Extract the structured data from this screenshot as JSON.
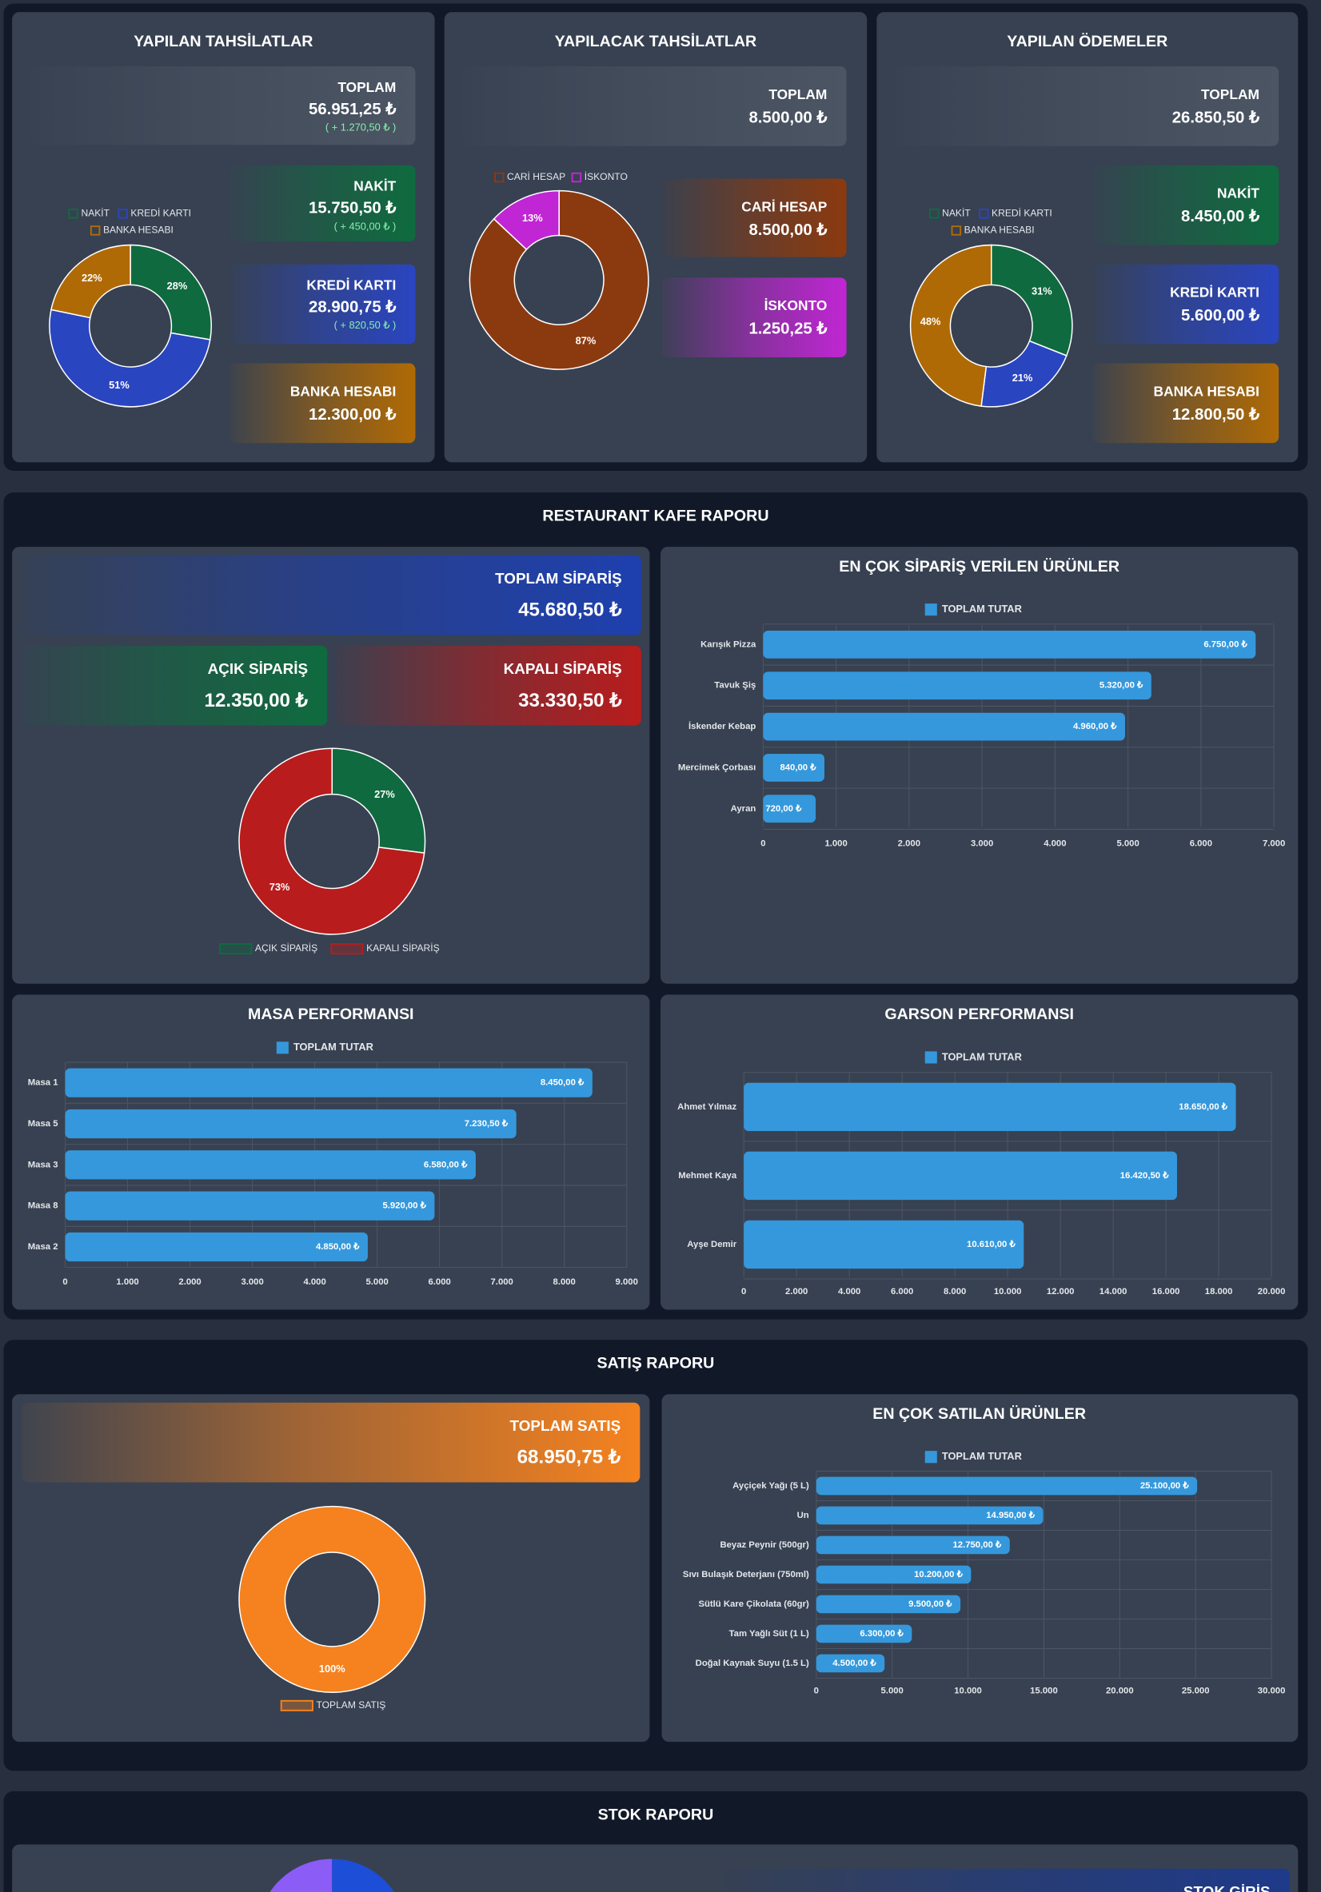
{
  "finance_panels": [
    {
      "title": "YAPILAN TAHSİLATLAR",
      "cards": [
        {
          "label": "TOPLAM",
          "value": "56.951,25 ₺",
          "change": "( + 1.270,50 ₺ )",
          "color": "#4b5563"
        },
        {
          "label": "NAKİT",
          "value": "15.750,50 ₺",
          "change": "( + 450,00 ₺ )",
          "color": "#0f6b3f"
        },
        {
          "label": "KREDİ KARTI",
          "value": "28.900,75 ₺",
          "change": "( + 820,50 ₺ )",
          "color": "#2a45c0"
        },
        {
          "label": "BANKA HESABI",
          "value": "12.300,00 ₺",
          "color": "#b06a05"
        }
      ]
    },
    {
      "title": "YAPILACAK TAHSİLATLAR",
      "cards": [
        {
          "label": "TOPLAM",
          "value": "8.500,00 ₺",
          "color": "#4b5563"
        },
        {
          "label": "CARİ HESAP",
          "value": "8.500,00 ₺",
          "color": "#8b3a0f"
        },
        {
          "label": "İSKONTO",
          "value": "1.250,25 ₺",
          "color": "#c026d3"
        }
      ]
    },
    {
      "title": "YAPILAN ÖDEMELER",
      "cards": [
        {
          "label": "TOPLAM",
          "value": "26.850,50 ₺",
          "color": "#4b5563"
        },
        {
          "label": "NAKİT",
          "value": "8.450,00 ₺",
          "color": "#0f6b3f"
        },
        {
          "label": "KREDİ KARTI",
          "value": "5.600,00 ₺",
          "color": "#2a45c0"
        },
        {
          "label": "BANKA HESABI",
          "value": "12.800,50 ₺",
          "color": "#b06a05"
        }
      ]
    }
  ],
  "restaurant": {
    "title": "RESTAURANT KAFE RAPORU",
    "cards": [
      {
        "label": "TOPLAM SİPARİŞ",
        "value": "45.680,50 ₺",
        "color": "#1e40af"
      },
      {
        "label": "AÇIK SİPARİŞ",
        "value": "12.350,00 ₺",
        "color": "#0f6b3f"
      },
      {
        "label": "KAPALI SİPARİŞ",
        "value": "33.330,50 ₺",
        "color": "#b91c1c"
      }
    ]
  },
  "sales": {
    "title": "SATIŞ RAPORU",
    "cards": [
      {
        "label": "TOPLAM SATIŞ",
        "value": "68.950,75 ₺",
        "color": "#f5821f"
      }
    ]
  },
  "stock": {
    "title": "STOK RAPORU",
    "cards": [
      {
        "label": "STOK GİRİŞ",
        "color": "#1e3a8a"
      }
    ]
  },
  "chart_data": [
    {
      "type": "donut",
      "categories": [
        "NAKİT",
        "KREDİ KARTI",
        "BANKA HESABI"
      ],
      "values": [
        28,
        51,
        22
      ],
      "value_labels": [
        "28%",
        "51%",
        "22%"
      ],
      "colors": [
        "#0f6b3f",
        "#2a45c0",
        "#b06a05"
      ]
    },
    {
      "type": "donut",
      "categories": [
        "CARİ HESAP",
        "İSKONTO"
      ],
      "values": [
        87,
        13
      ],
      "value_labels": [
        "87%",
        "13%"
      ],
      "colors": [
        "#8b3a0f",
        "#c026d3"
      ]
    },
    {
      "type": "donut",
      "categories": [
        "NAKİT",
        "KREDİ KARTI",
        "BANKA HESABI"
      ],
      "values": [
        31,
        21,
        48
      ],
      "value_labels": [
        "31%",
        "21%",
        "48%"
      ],
      "colors": [
        "#0f6b3f",
        "#2a45c0",
        "#b06a05"
      ]
    },
    {
      "type": "donut",
      "categories": [
        "AÇIK SİPARİŞ",
        "KAPALI SİPARİŞ"
      ],
      "values": [
        27,
        73
      ],
      "value_labels": [
        "27%",
        "73%"
      ],
      "colors": [
        "#0f6b3f",
        "#b91c1c"
      ]
    },
    {
      "type": "hbar",
      "title": "EN ÇOK SİPARİŞ VERİLEN ÜRÜNLER",
      "categories": [
        "Karışık Pizza",
        "Tavuk Şiş",
        "İskender Kebap",
        "Mercimek Çorbası",
        "Ayran"
      ],
      "series": [
        {
          "name": "TOPLAM TUTAR",
          "color": "#3598dc",
          "values": [
            6750,
            5320,
            4960,
            840,
            720
          ],
          "value_labels": [
            "6.750,00 ₺",
            "5.320,00 ₺",
            "4.960,00 ₺",
            "840,00 ₺",
            "720,00 ₺"
          ]
        }
      ],
      "xlim": [
        0,
        7000
      ],
      "xticks": [
        0,
        {
          "value": 1000,
          "label": "1.000"
        },
        {
          "value": 2000,
          "label": "2.000"
        },
        {
          "value": 3000,
          "label": "3.000"
        },
        {
          "value": 4000,
          "label": "4.000"
        },
        {
          "value": 5000,
          "label": "5.000"
        },
        {
          "value": 6000,
          "label": "6.000"
        },
        {
          "value": 7000,
          "label": "7.000"
        }
      ],
      "grid": true
    },
    {
      "type": "hbar",
      "title": "MASA PERFORMANSI",
      "categories": [
        "Masa 1",
        "Masa 5",
        "Masa 3",
        "Masa 8",
        "Masa 2"
      ],
      "series": [
        {
          "name": "TOPLAM TUTAR",
          "color": "#3598dc",
          "values": [
            8450,
            7230.5,
            6580,
            5920,
            4850
          ],
          "value_labels": [
            "8.450,00 ₺",
            "7.230,50 ₺",
            "6.580,00 ₺",
            "5.920,00 ₺",
            "4.850,00 ₺"
          ]
        }
      ],
      "xlim": [
        0,
        9000
      ],
      "xticks": [
        0,
        {
          "value": 1000,
          "label": "1.000"
        },
        {
          "value": 2000,
          "label": "2.000"
        },
        {
          "value": 3000,
          "label": "3.000"
        },
        {
          "value": 4000,
          "label": "4.000"
        },
        {
          "value": 5000,
          "label": "5.000"
        },
        {
          "value": 6000,
          "label": "6.000"
        },
        {
          "value": 7000,
          "label": "7.000"
        },
        {
          "value": 8000,
          "label": "8.000"
        },
        {
          "value": 9000,
          "label": "9.000"
        }
      ],
      "grid": true
    },
    {
      "type": "hbar",
      "title": "GARSON PERFORMANSI",
      "categories": [
        "Ahmet Yılmaz",
        "Mehmet Kaya",
        "Ayşe Demir"
      ],
      "series": [
        {
          "name": "TOPLAM TUTAR",
          "color": "#3598dc",
          "values": [
            18650,
            16420.5,
            10610
          ],
          "value_labels": [
            "18.650,00 ₺",
            "16.420,50 ₺",
            "10.610,00 ₺"
          ]
        }
      ],
      "xlim": [
        0,
        20000
      ],
      "xticks": [
        0,
        {
          "value": 2000,
          "label": "2.000"
        },
        {
          "value": 4000,
          "label": "4.000"
        },
        {
          "value": 6000,
          "label": "6.000"
        },
        {
          "value": 8000,
          "label": "8.000"
        },
        {
          "value": 10000,
          "label": "10.000"
        },
        {
          "value": 12000,
          "label": "12.000"
        },
        {
          "value": 14000,
          "label": "14.000"
        },
        {
          "value": 16000,
          "label": "16.000"
        },
        {
          "value": 18000,
          "label": "18.000"
        },
        {
          "value": 20000,
          "label": "20.000"
        }
      ],
      "grid": true
    },
    {
      "type": "donut",
      "categories": [
        "TOPLAM SATIŞ"
      ],
      "values": [
        100
      ],
      "value_labels": [
        "100%"
      ],
      "colors": [
        "#f5821f"
      ]
    },
    {
      "type": "hbar",
      "title": "EN ÇOK SATILAN ÜRÜNLER",
      "categories": [
        "Ayçiçek Yağı (5 L)",
        "Un",
        "Beyaz Peynir (500gr)",
        "Sıvı Bulaşık Deterjanı (750ml)",
        "Sütlü Kare Çikolata (60gr)",
        "Tam Yağlı Süt (1 L)",
        "Doğal Kaynak Suyu (1.5 L)"
      ],
      "series": [
        {
          "name": "TOPLAM TUTAR",
          "color": "#3598dc",
          "values": [
            25100,
            14950,
            12750,
            10200,
            9500,
            6300,
            4500
          ],
          "value_labels": [
            "25.100,00 ₺",
            "14.950,00 ₺",
            "12.750,00 ₺",
            "10.200,00 ₺",
            "9.500,00 ₺",
            "6.300,00 ₺",
            "4.500,00 ₺"
          ]
        }
      ],
      "xlim": [
        0,
        30000
      ],
      "xticks": [
        0,
        {
          "value": 5000,
          "label": "5.000"
        },
        {
          "value": 10000,
          "label": "10.000"
        },
        {
          "value": 15000,
          "label": "15.000"
        },
        {
          "value": 20000,
          "label": "20.000"
        },
        {
          "value": 25000,
          "label": "25.000"
        },
        {
          "value": 30000,
          "label": "30.000"
        }
      ],
      "grid": true
    }
  ]
}
